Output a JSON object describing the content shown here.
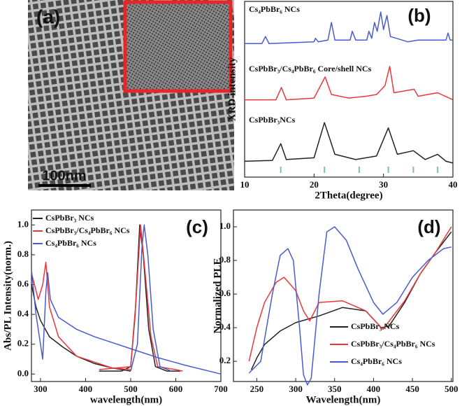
{
  "image": {
    "label": "(a)",
    "scale_bar": "100nm"
  },
  "chart_data": [
    {
      "type": "line",
      "panel_label": "(b)",
      "xlabel": "2Theta(degree)",
      "ylabel": "XRD intensity",
      "xlim": [
        10,
        40
      ],
      "xticks": [
        10,
        20,
        30,
        40
      ],
      "ylim": [
        0,
        10
      ],
      "legend": "inline",
      "grid": false,
      "reference_color": "#7fbfa8",
      "reference_peaks": [
        15.2,
        21.5,
        26.5,
        30.7,
        34.3,
        37.8
      ],
      "series": [
        {
          "name": "Cs₄PbBr₆ NCs",
          "color": "#4a5bd0",
          "x": [
            10,
            12.5,
            13,
            13.5,
            20,
            20.2,
            20.6,
            22,
            22.5,
            23,
            25.2,
            25.5,
            26,
            27.6,
            27.9,
            28.3,
            28.7,
            29.1,
            29.6,
            30,
            30.5,
            31,
            33.5,
            35,
            39,
            39.3,
            39.6,
            40
          ],
          "values": [
            7.6,
            7.6,
            8.0,
            7.6,
            7.7,
            7.9,
            7.7,
            7.8,
            8.8,
            7.8,
            7.8,
            8.3,
            7.8,
            7.8,
            8.3,
            7.9,
            8.8,
            8.3,
            9.4,
            8.4,
            9.2,
            8.0,
            7.7,
            7.8,
            7.8,
            8.2,
            7.8,
            7.8
          ]
        },
        {
          "name": "CsPbBr₃/Cs₄PbBr₆ Core/shell NCs",
          "color": "#e8383c",
          "x": [
            10,
            14.5,
            15.3,
            16,
            20,
            21.6,
            22.5,
            25,
            27.5,
            29,
            30.2,
            30.9,
            31.5,
            34.4,
            35,
            37.8,
            40
          ],
          "values": [
            4.4,
            4.4,
            5.1,
            4.4,
            4.5,
            5.7,
            4.7,
            4.5,
            4.6,
            4.7,
            5.2,
            6.3,
            4.8,
            5.0,
            4.6,
            4.8,
            4.4
          ]
        },
        {
          "name": "CsPbBr₃NCs",
          "color": "#222222",
          "x": [
            10,
            14,
            15.2,
            16,
            20,
            21.5,
            23,
            26,
            29,
            30.7,
            32,
            34.3,
            36,
            37.8,
            39,
            40
          ],
          "values": [
            0.9,
            0.95,
            1.9,
            1.0,
            1.1,
            3.1,
            1.3,
            1.0,
            1.2,
            2.8,
            1.3,
            1.5,
            1.0,
            1.3,
            0.9,
            0.8
          ]
        }
      ]
    },
    {
      "type": "line",
      "panel_label": "(c)",
      "xlabel": "wavelength(nm)",
      "ylabel": "Abs/PL Intensity(norm.)",
      "xlim": [
        280,
        700
      ],
      "xticks": [
        300,
        400,
        500,
        600,
        700
      ],
      "ylim": [
        -0.05,
        1.1
      ],
      "yticks": [
        {
          "value": 0,
          "label": "0.0"
        },
        {
          "value": 0.2,
          "label": "0.2"
        },
        {
          "value": 0.4,
          "label": "0.4"
        },
        {
          "value": 0.6,
          "label": "0.6"
        },
        {
          "value": 0.8,
          "label": "0.8"
        },
        {
          "value": 1,
          "label": "1.0"
        }
      ],
      "legend": "upper left",
      "grid": false,
      "series": [
        {
          "name": "CsPbBr₃ NCs",
          "color": "#222222",
          "x": [
            280,
            290,
            300,
            320,
            350,
            380,
            420,
            460,
            500,
            500,
            430,
            480,
            500,
            510,
            520,
            528,
            540,
            555,
            580,
            610
          ],
          "values": [
            0.6,
            0.45,
            0.36,
            0.25,
            0.18,
            0.12,
            0.07,
            0.04,
            0.02,
            null,
            0.02,
            0.02,
            0.05,
            0.4,
            1.0,
            0.8,
            0.3,
            0.05,
            0.02,
            0.02
          ]
        },
        {
          "name": "CsPbBr₃/Cs₄PbBr₆ NCs",
          "color": "#e8383c",
          "x": [
            280,
            295,
            305,
            312,
            320,
            340,
            380,
            420,
            460,
            500,
            500,
            430,
            500,
            512,
            522,
            530,
            545,
            560,
            600,
            615
          ],
          "values": [
            0.68,
            0.5,
            0.6,
            0.75,
            0.45,
            0.25,
            0.12,
            0.08,
            0.04,
            0.03,
            null,
            0.03,
            0.05,
            0.5,
            1.0,
            0.75,
            0.25,
            0.05,
            0.03,
            0.02
          ]
        },
        {
          "name": "Cs₄PbBr₆ NCs",
          "color": "#4a5bd0",
          "x": [
            280,
            290,
            300,
            305,
            312,
            316,
            322,
            340,
            380,
            420,
            460,
            500,
            560,
            620,
            700,
            700,
            500,
            515,
            525,
            530,
            538,
            550,
            565,
            590
          ],
          "values": [
            0.7,
            0.4,
            0.2,
            0.1,
            0.55,
            0.68,
            0.5,
            0.38,
            0.3,
            0.25,
            0.21,
            0.17,
            0.11,
            0.06,
            0.0,
            null,
            0.02,
            0.2,
            0.85,
            1.0,
            0.8,
            0.3,
            0.05,
            0.02
          ]
        }
      ]
    },
    {
      "type": "line",
      "panel_label": "(d)",
      "xlabel": "Wavelength(nm)",
      "ylabel": "Normalized PLE",
      "xlim": [
        220,
        502
      ],
      "xticks": [
        250,
        300,
        350,
        400,
        450,
        500
      ],
      "ylim": [
        0.08,
        1.1
      ],
      "yticks": [
        {
          "value": 0.2,
          "label": "0.2"
        },
        {
          "value": 0.4,
          "label": "0.4"
        },
        {
          "value": 0.6,
          "label": "0.6"
        },
        {
          "value": 0.8,
          "label": "0.8"
        },
        {
          "value": 1,
          "label": "1.0"
        }
      ],
      "legend": "lower right",
      "grid": false,
      "series": [
        {
          "name": "CsPbBr₃ NCs",
          "color": "#222222",
          "x": [
            243,
            250,
            260,
            280,
            300,
            330,
            360,
            390,
            410,
            420,
            440,
            460,
            480,
            500
          ],
          "values": [
            0.15,
            0.22,
            0.3,
            0.38,
            0.43,
            0.47,
            0.52,
            0.5,
            0.4,
            0.41,
            0.55,
            0.72,
            0.85,
            0.97
          ]
        },
        {
          "name": "CsPbBr₃/Cs₄PbBr₆ NCs",
          "color": "#e8383c",
          "x": [
            240,
            250,
            260,
            275,
            285,
            300,
            310,
            318,
            330,
            360,
            390,
            412,
            440,
            460,
            480,
            500
          ],
          "values": [
            0.2,
            0.4,
            0.55,
            0.67,
            0.7,
            0.62,
            0.5,
            0.44,
            0.55,
            0.56,
            0.5,
            0.39,
            0.56,
            0.72,
            0.85,
            1.0
          ]
        },
        {
          "name": "Cs₄PbBr₆ NCs",
          "color": "#4a5bd0",
          "x": [
            240,
            255,
            270,
            280,
            290,
            297,
            305,
            310,
            315,
            320,
            330,
            340,
            350,
            365,
            380,
            400,
            412,
            430,
            450,
            470,
            490,
            500
          ],
          "values": [
            0.13,
            0.2,
            0.6,
            0.83,
            0.87,
            0.8,
            0.4,
            0.12,
            0.06,
            0.1,
            0.6,
            0.97,
            1.0,
            0.92,
            0.75,
            0.55,
            0.48,
            0.55,
            0.7,
            0.8,
            0.87,
            0.88
          ]
        }
      ]
    }
  ]
}
